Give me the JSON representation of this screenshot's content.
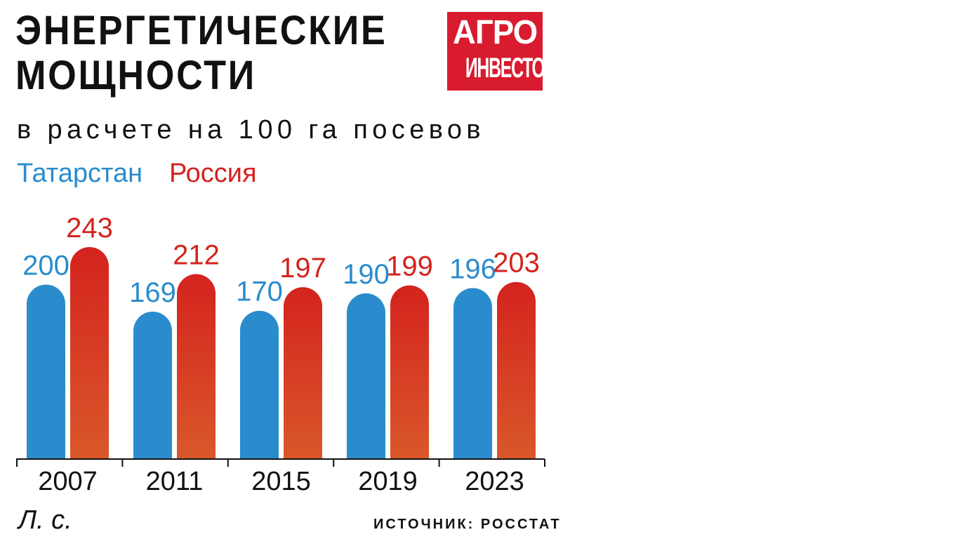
{
  "header": {
    "title_line1": "ЭНЕРГЕТИЧЕСКИЕ",
    "title_line2": "МОЩНОСТИ",
    "subtitle": "в расчете на 100 га посевов",
    "unit": "Л. с.",
    "source": "ИСТОЧНИК: РОССТАТ"
  },
  "logo": {
    "line1": "АГРО",
    "line2": "ИНВЕСТОР"
  },
  "colors": {
    "tatarstan": "#2a8ccc",
    "russia_top": "#d4231e",
    "russia_bottom": "#d9582a",
    "text": "#111111",
    "brand": "#d81b2e"
  },
  "chart_data": {
    "type": "bar",
    "title": "ЭНЕРГЕТИЧЕСКИЕ МОЩНОСТИ",
    "subtitle": "в расчете на 100 га посевов",
    "ylabel": "Л. с.",
    "categories": [
      "2007",
      "2011",
      "2015",
      "2019",
      "2023"
    ],
    "series": [
      {
        "name": "Татарстан",
        "values": [
          200,
          169,
          170,
          190,
          196
        ]
      },
      {
        "name": "Россия",
        "values": [
          243,
          212,
          197,
          199,
          203
        ]
      }
    ],
    "ylim": [
      0,
      243
    ],
    "grid": false,
    "legend": "top-left"
  }
}
